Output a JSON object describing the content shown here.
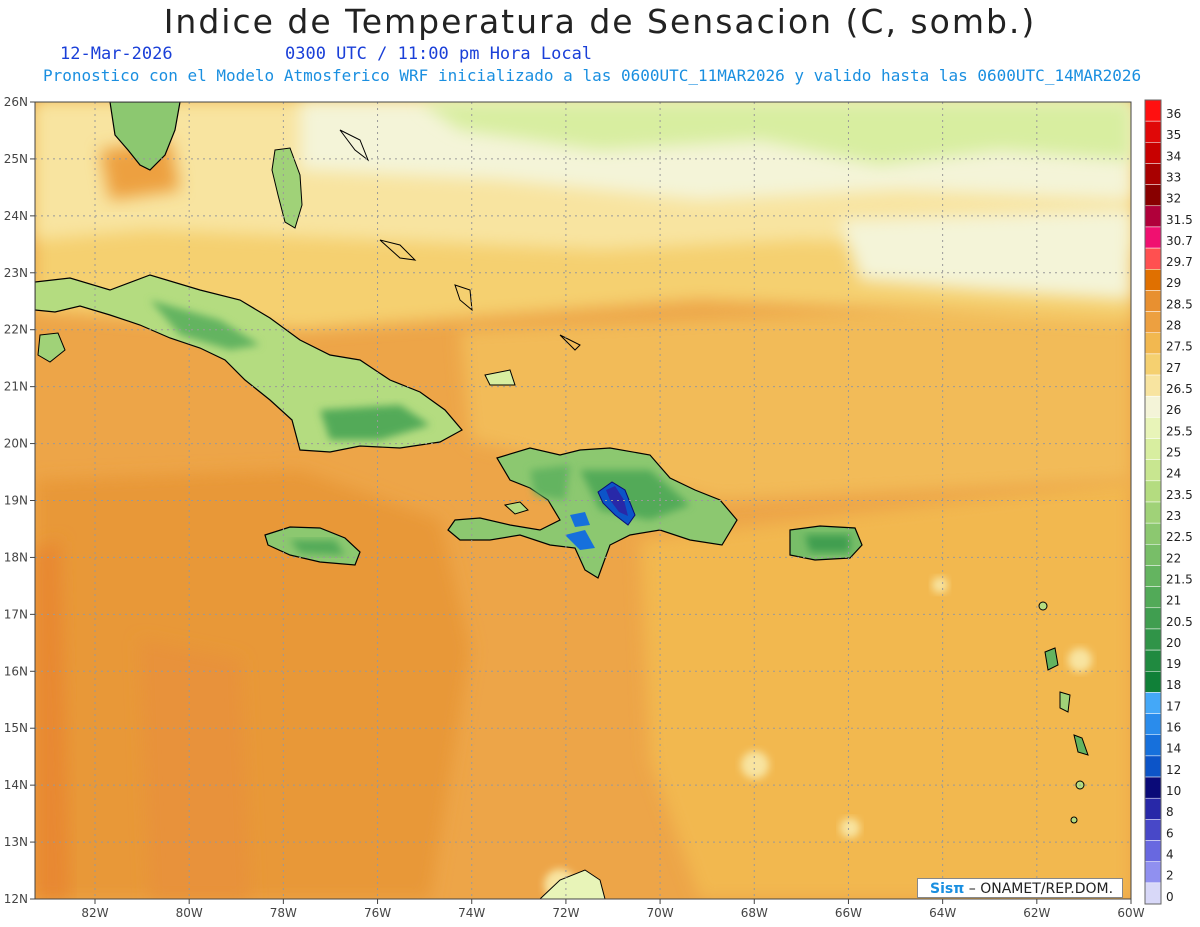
{
  "title": "Indice de Temperatura de Sensacion (C, somb.)",
  "date": "12-Mar-2026",
  "time": "0300 UTC / 11:00 pm Hora Local",
  "subtitle": "Pronostico con el Modelo Atmosferico WRF inicializado a las 0600UTC_11MAR2026 y valido hasta las  0600UTC_14MAR2026",
  "credit": {
    "logo": "Sisπ",
    "text": "– ONAMET/REP.DOM."
  },
  "lat_ticks": [
    "26N",
    "25N",
    "24N",
    "23N",
    "22N",
    "21N",
    "20N",
    "19N",
    "18N",
    "17N",
    "16N",
    "15N",
    "14N",
    "13N",
    "12N"
  ],
  "lon_ticks": [
    "82W",
    "80W",
    "78W",
    "76W",
    "74W",
    "72W",
    "70W",
    "68W",
    "66W",
    "64W",
    "62W",
    "60W"
  ],
  "colorbar": {
    "labels": [
      "36",
      "35",
      "34",
      "33",
      "32",
      "31.5",
      "30.7",
      "29.7",
      "29",
      "28.5",
      "28",
      "27.5",
      "27",
      "26.5",
      "26",
      "25.5",
      "25",
      "24",
      "23.5",
      "23",
      "22.5",
      "22",
      "21.5",
      "21",
      "20.5",
      "20",
      "19",
      "18",
      "17",
      "16",
      "14",
      "12",
      "10",
      "8",
      "6",
      "4",
      "2",
      "0"
    ],
    "colors": [
      "#ff1010",
      "#e00808",
      "#c80000",
      "#a80000",
      "#880000",
      "#b0003a",
      "#f01070",
      "#ff5050",
      "#e07000",
      "#e89030",
      "#eda040",
      "#f2b850",
      "#f5d070",
      "#f8e4a0",
      "#f4f4d8",
      "#e8f4b8",
      "#d8eea0",
      "#c8e690",
      "#b4dc80",
      "#a0d278",
      "#8cc870",
      "#78be68",
      "#64b460",
      "#52aa58",
      "#409e50",
      "#309448",
      "#208a40",
      "#108038",
      "#44a8f8",
      "#2a8cec",
      "#1670dc",
      "#0c54c8",
      "#0a0a78",
      "#2828a8",
      "#4848c8",
      "#6868e0",
      "#9090f0",
      "#d8d8f8"
    ]
  }
}
